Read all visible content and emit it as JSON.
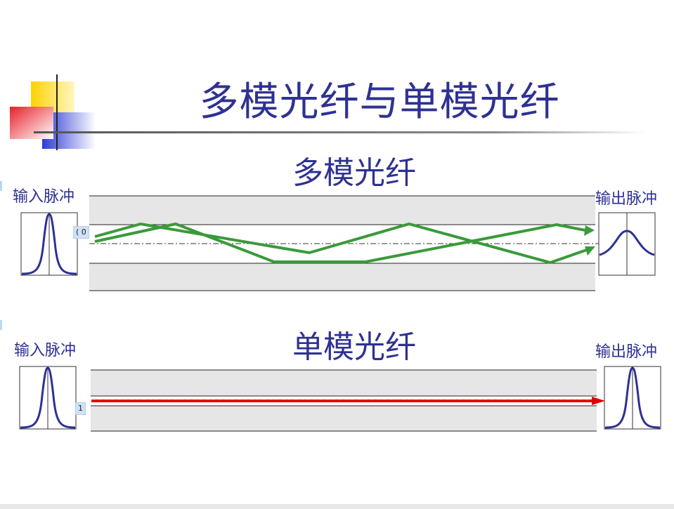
{
  "slide": {
    "title": "多模光纤与单模光纤",
    "colors": {
      "title": "#2e3192",
      "accent_yellow": "#ffd200",
      "accent_red": "#e8202a",
      "accent_blue": "#2e3bd6",
      "cladding": "#e6e6e6",
      "multimode_ray": "#3a9a3a",
      "singlemode_ray": "#e00000",
      "pulse": "#2e3192"
    }
  },
  "multimode": {
    "heading": "多模光纤",
    "input_label": "输入脉冲",
    "output_label": "输出脉冲",
    "marker": "( 0"
  },
  "singlemode": {
    "heading": "单模光纤",
    "input_label": "输入脉冲",
    "output_label": "输出脉冲",
    "marker": "1"
  }
}
